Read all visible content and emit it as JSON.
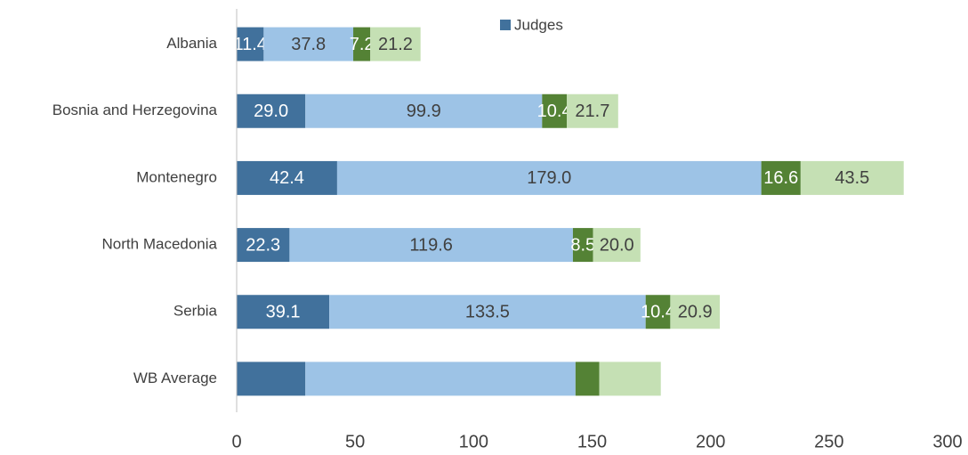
{
  "chart_data": {
    "type": "stacked-bar-horizontal",
    "categories": [
      "Albania",
      "Bosnia and Herzegovina",
      "Montenegro",
      "North Macedonia",
      "Serbia",
      "WB Average"
    ],
    "series": [
      {
        "name": "Judges",
        "color": "#41719c",
        "values": [
          11.4,
          29.0,
          42.4,
          22.3,
          39.1,
          29
        ],
        "value_labels": [
          "11.4",
          "29.0",
          "42.4",
          "22.3",
          "39.1",
          null
        ]
      },
      {
        "color": "#9dc3e6",
        "values": [
          37.8,
          99.9,
          179.0,
          119.6,
          133.5,
          114
        ],
        "value_labels": [
          "37.8",
          "99.9",
          "179.0",
          "119.6",
          "133.5",
          null
        ]
      },
      {
        "color": "#548235",
        "values": [
          7.2,
          10.4,
          16.6,
          8.5,
          10.4,
          10
        ],
        "value_labels": [
          "7.2",
          "10.4",
          "16.6",
          "8.5",
          "10.4",
          null
        ]
      },
      {
        "color": "#c5e0b4",
        "values": [
          21.2,
          21.7,
          43.5,
          20.0,
          20.9,
          26
        ],
        "value_labels": [
          "21.2",
          "21.7",
          "43.5",
          "20.0",
          "20.9",
          null
        ]
      }
    ],
    "xlim": [
      0,
      300
    ],
    "xticks": [
      0,
      50,
      100,
      150,
      200,
      250,
      300
    ],
    "grid": false,
    "legend": "top"
  }
}
